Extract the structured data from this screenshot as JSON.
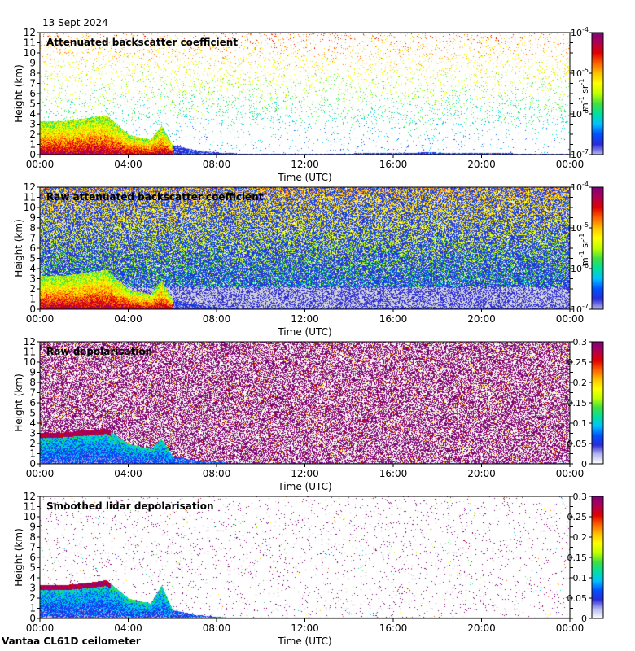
{
  "date": "13 Sept 2024",
  "station": "Vantaa CL61D ceilometer",
  "colors": {
    "jet": [
      "#ffffff",
      "#b8b8f0",
      "#2b2bd8",
      "#0050ff",
      "#00c0ff",
      "#00e0a0",
      "#40e040",
      "#c0ff00",
      "#ffff00",
      "#ffc000",
      "#ff6000",
      "#e00000",
      "#b00050",
      "#800080"
    ],
    "grey_background": "#d9d9d9",
    "noise_purple": "#7a0070"
  },
  "chart_data": [
    {
      "type": "heatmap",
      "title": "Attenuated backscatter coefficient",
      "xlabel": "Time (UTC)",
      "ylabel": "Height (km)",
      "x_ticks": [
        "00:00",
        "04:00",
        "08:00",
        "12:00",
        "16:00",
        "20:00",
        "00:00"
      ],
      "y_ticks": [
        "0",
        "1",
        "2",
        "3",
        "4",
        "5",
        "6",
        "7",
        "8",
        "9",
        "10",
        "11",
        "12"
      ],
      "xlim_hours": [
        0,
        24
      ],
      "ylim_km": [
        0,
        12
      ],
      "colorbar": {
        "scale": "log",
        "range": [
          1e-07,
          0.0001
        ],
        "tick_bases": [
          "10",
          "10",
          "10",
          "10"
        ],
        "tick_exponents": [
          "-7",
          "-6",
          "-5",
          "-4"
        ],
        "tick_values": [
          1e-07,
          1e-06,
          1e-05,
          0.0001
        ],
        "unit_main": "m",
        "unit_exp1": "-1",
        "unit_mid": " sr",
        "unit_exp2": "-1"
      },
      "background": "white",
      "noise_density": 0.08,
      "boundary_layer_top_km": [
        [
          0,
          3.3
        ],
        [
          1,
          3.3
        ],
        [
          2,
          3.6
        ],
        [
          3,
          3.9
        ],
        [
          4,
          2.0
        ],
        [
          5,
          1.5
        ],
        [
          5.5,
          2.9
        ],
        [
          6,
          1.0
        ],
        [
          7,
          0.5
        ],
        [
          8,
          0.25
        ],
        [
          9,
          0.15
        ],
        [
          12,
          0.1
        ],
        [
          17.5,
          0.25
        ],
        [
          24,
          0.1
        ]
      ]
    },
    {
      "type": "heatmap",
      "title": "Raw attenuated backscatter coefficient",
      "xlabel": "Time (UTC)",
      "ylabel": "Height (km)",
      "x_ticks": [
        "00:00",
        "04:00",
        "08:00",
        "12:00",
        "16:00",
        "20:00",
        "00:00"
      ],
      "y_ticks": [
        "0",
        "1",
        "2",
        "3",
        "4",
        "5",
        "6",
        "7",
        "8",
        "9",
        "10",
        "11",
        "12"
      ],
      "xlim_hours": [
        0,
        24
      ],
      "ylim_km": [
        0,
        12
      ],
      "colorbar": {
        "scale": "log",
        "range": [
          1e-07,
          0.0001
        ],
        "tick_bases": [
          "10",
          "10",
          "10",
          "10"
        ],
        "tick_exponents": [
          "-7",
          "-6",
          "-5",
          "-4"
        ],
        "tick_values": [
          1e-07,
          1e-06,
          1e-05,
          0.0001
        ],
        "unit_main": "m",
        "unit_exp1": "-1",
        "unit_mid": " sr",
        "unit_exp2": "-1"
      },
      "background": "noise-blue-green",
      "noise_density": 0.9,
      "boundary_layer_top_km": [
        [
          0,
          3.3
        ],
        [
          1,
          3.3
        ],
        [
          2,
          3.6
        ],
        [
          3,
          3.9
        ],
        [
          4,
          2.0
        ],
        [
          5,
          1.5
        ],
        [
          5.5,
          2.9
        ],
        [
          6,
          1.0
        ],
        [
          7,
          0.5
        ],
        [
          8,
          0.25
        ],
        [
          9,
          0.15
        ],
        [
          12,
          0.1
        ],
        [
          17.5,
          0.25
        ],
        [
          24,
          0.1
        ]
      ]
    },
    {
      "type": "heatmap",
      "title": "Raw depolarisation",
      "xlabel": "Time (UTC)",
      "ylabel": "Height (km)",
      "x_ticks": [
        "00:00",
        "04:00",
        "08:00",
        "12:00",
        "16:00",
        "20:00",
        "00:00"
      ],
      "y_ticks": [
        "0",
        "1",
        "2",
        "3",
        "4",
        "5",
        "6",
        "7",
        "8",
        "9",
        "10",
        "11",
        "12"
      ],
      "xlim_hours": [
        0,
        24
      ],
      "ylim_km": [
        0,
        12
      ],
      "colorbar": {
        "scale": "linear",
        "range": [
          0,
          0.3
        ],
        "tick_labels": [
          "0",
          "0.05",
          "0.1",
          "0.15",
          "0.2",
          "0.25",
          "0.3"
        ],
        "tick_values": [
          0,
          0.05,
          0.1,
          0.15,
          0.2,
          0.25,
          0.3
        ]
      },
      "background": "noise-purple",
      "noise_density": 0.55,
      "boundary_layer_top_km": [
        [
          0,
          3.1
        ],
        [
          1,
          3.1
        ],
        [
          2,
          3.3
        ],
        [
          3,
          3.5
        ],
        [
          4,
          2.0
        ],
        [
          5,
          1.5
        ],
        [
          5.5,
          2.5
        ],
        [
          6,
          0.8
        ],
        [
          7,
          0.4
        ],
        [
          8,
          0.2
        ],
        [
          9,
          0.1
        ],
        [
          24,
          0.1
        ]
      ]
    },
    {
      "type": "heatmap",
      "title": "Smoothed lidar depolarisation",
      "xlabel": "Time (UTC)",
      "ylabel": "Height (km)",
      "x_ticks": [
        "00:00",
        "04:00",
        "08:00",
        "12:00",
        "16:00",
        "20:00",
        "00:00"
      ],
      "y_ticks": [
        "0",
        "1",
        "2",
        "3",
        "4",
        "5",
        "6",
        "7",
        "8",
        "9",
        "10",
        "11",
        "12"
      ],
      "xlim_hours": [
        0,
        24
      ],
      "ylim_km": [
        0,
        12
      ],
      "colorbar": {
        "scale": "linear",
        "range": [
          0,
          0.3
        ],
        "tick_labels": [
          "0",
          "0.05",
          "0.1",
          "0.15",
          "0.2",
          "0.25",
          "0.3"
        ],
        "tick_values": [
          0,
          0.05,
          0.1,
          0.15,
          0.2,
          0.25,
          0.3
        ]
      },
      "background": "white",
      "noise_density": 0.03,
      "boundary_layer_top_km": [
        [
          0,
          3.3
        ],
        [
          1,
          3.3
        ],
        [
          2,
          3.5
        ],
        [
          3,
          3.8
        ],
        [
          4,
          2.0
        ],
        [
          5,
          1.5
        ],
        [
          5.5,
          3.3
        ],
        [
          6,
          0.9
        ],
        [
          7,
          0.4
        ],
        [
          8,
          0.2
        ],
        [
          9,
          0.1
        ],
        [
          24,
          0.1
        ]
      ]
    }
  ]
}
